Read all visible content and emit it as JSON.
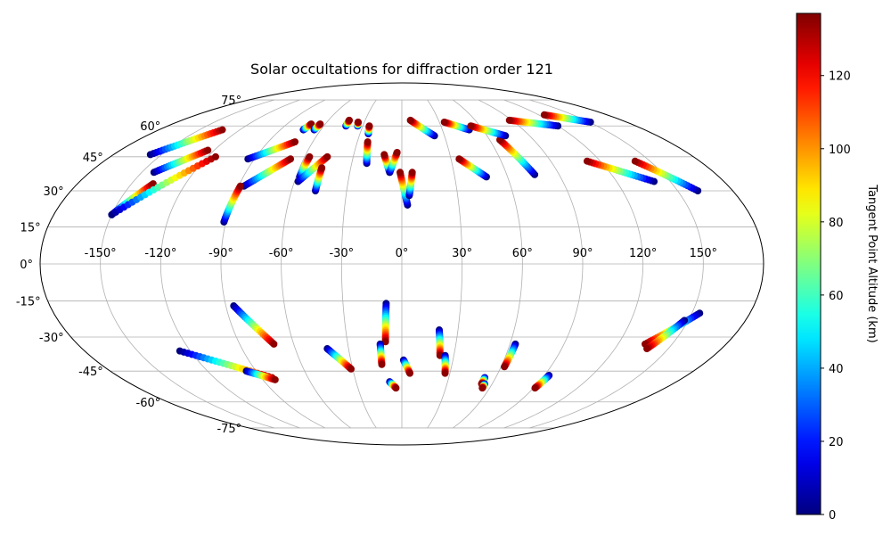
{
  "chart_data": {
    "type": "scatter",
    "projection": "mollweide",
    "title": "Solar occultations for diffraction order 121",
    "lon_ticks": [
      -150,
      -120,
      -90,
      -60,
      -30,
      0,
      30,
      60,
      90,
      120,
      150
    ],
    "lon_tick_labels": [
      "-150°",
      "-120°",
      "-90°",
      "-60°",
      "-30°",
      "0°",
      "30°",
      "60°",
      "90°",
      "120°",
      "150°"
    ],
    "lat_ticks": [
      75,
      60,
      45,
      30,
      15,
      0,
      -15,
      -30,
      -45,
      -60,
      -75
    ],
    "lat_tick_labels": [
      "75°",
      "60°",
      "45°",
      "30°",
      "15°",
      "0°",
      "-15°",
      "-30°",
      "-45°",
      "-60°",
      "-75°"
    ],
    "grid": true,
    "colorbar": {
      "label": "Tangent Point Altitude (km)",
      "range": [
        0,
        137
      ],
      "ticks": [
        0,
        20,
        40,
        60,
        80,
        100,
        120
      ],
      "tick_labels": [
        "0",
        "20",
        "40",
        "60",
        "80",
        "100",
        "120"
      ],
      "colormap": "jet"
    },
    "occultations": [
      {
        "start": [
          -157,
          46
        ],
        "end": [
          -133,
          58
        ],
        "alt_start": 0,
        "alt_end": 135
      },
      {
        "start": [
          -143,
          38
        ],
        "end": [
          -124,
          48
        ],
        "alt_start": 0,
        "alt_end": 135
      },
      {
        "start": [
          -150,
          20
        ],
        "end": [
          -138,
          33
        ],
        "alt_start": 0,
        "alt_end": 135
      },
      {
        "start": [
          -150,
          20
        ],
        "end": [
          -115,
          45
        ],
        "alt_start": 0,
        "alt_end": 135
      },
      {
        "start": [
          -94,
          44
        ],
        "end": [
          -72,
          52
        ],
        "alt_start": 0,
        "alt_end": 135
      },
      {
        "start": [
          -87,
          32
        ],
        "end": [
          -68,
          44
        ],
        "alt_start": 0,
        "alt_end": 135
      },
      {
        "start": [
          -91,
          17
        ],
        "end": [
          -89,
          32
        ],
        "alt_start": 0,
        "alt_end": 135
      },
      {
        "start": [
          -73,
          58
        ],
        "end": [
          -71,
          61
        ],
        "alt_start": 0,
        "alt_end": 135
      },
      {
        "start": [
          -65,
          58
        ],
        "end": [
          -64,
          61
        ],
        "alt_start": 0,
        "alt_end": 135
      },
      {
        "start": [
          -58,
          36
        ],
        "end": [
          -57,
          45
        ],
        "alt_start": 0,
        "alt_end": 135
      },
      {
        "start": [
          -58,
          34
        ],
        "end": [
          -46,
          45
        ],
        "alt_start": 0,
        "alt_end": 135
      },
      {
        "start": [
          -47,
          30
        ],
        "end": [
          -47,
          40
        ],
        "alt_start": 0,
        "alt_end": 135
      },
      {
        "start": [
          -43,
          60
        ],
        "end": [
          -43,
          63
        ],
        "alt_start": 0,
        "alt_end": 135
      },
      {
        "start": [
          -34,
          60
        ],
        "end": [
          -35,
          62
        ],
        "alt_start": 0,
        "alt_end": 135
      },
      {
        "start": [
          -24,
          56
        ],
        "end": [
          -25,
          60
        ],
        "alt_start": 0,
        "alt_end": 135
      },
      {
        "start": [
          -21,
          42
        ],
        "end": [
          -23,
          52
        ],
        "alt_start": 0,
        "alt_end": 135
      },
      {
        "start": [
          -7,
          38
        ],
        "end": [
          -11,
          46
        ],
        "alt_start": 0,
        "alt_end": 135
      },
      {
        "start": [
          -7,
          38
        ],
        "end": [
          -3,
          47
        ],
        "alt_start": 0,
        "alt_end": 135
      },
      {
        "start": [
          3,
          24
        ],
        "end": [
          -1,
          38
        ],
        "alt_start": 0,
        "alt_end": 135
      },
      {
        "start": [
          4,
          28
        ],
        "end": [
          6,
          38
        ],
        "alt_start": 0,
        "alt_end": 135
      },
      {
        "start": [
          23,
          55
        ],
        "end": [
          7,
          63
        ],
        "alt_start": 0,
        "alt_end": 135
      },
      {
        "start": [
          48,
          36
        ],
        "end": [
          35,
          44
        ],
        "alt_start": 0,
        "alt_end": 135
      },
      {
        "start": [
          50,
          58
        ],
        "end": [
          34,
          62
        ],
        "alt_start": 0,
        "alt_end": 135
      },
      {
        "start": [
          76,
          37
        ],
        "end": [
          67,
          53
        ],
        "alt_start": 0,
        "alt_end": 135
      },
      {
        "start": [
          73,
          55
        ],
        "end": [
          53,
          60
        ],
        "alt_start": 0,
        "alt_end": 135
      },
      {
        "start": [
          120,
          60
        ],
        "end": [
          88,
          63
        ],
        "alt_start": 0,
        "alt_end": 135
      },
      {
        "start": [
          151,
          62
        ],
        "end": [
          125,
          66
        ],
        "alt_start": 0,
        "alt_end": 135
      },
      {
        "start": [
          141,
          34
        ],
        "end": [
          112,
          43
        ],
        "alt_start": 0,
        "alt_end": 135
      },
      {
        "start": [
          161,
          30
        ],
        "end": [
          141,
          43
        ],
        "alt_start": 0,
        "alt_end": 135
      },
      {
        "start": [
          -86,
          -17
        ],
        "end": [
          -71,
          -33
        ],
        "alt_start": 0,
        "alt_end": 135
      },
      {
        "start": [
          -126,
          -36
        ],
        "end": [
          -83,
          -48
        ],
        "alt_start": 0,
        "alt_end": 135
      },
      {
        "start": [
          -96,
          -45
        ],
        "end": [
          -82,
          -49
        ],
        "alt_start": 0,
        "alt_end": 135
      },
      {
        "start": [
          -42,
          -35
        ],
        "end": [
          -31,
          -44
        ],
        "alt_start": 0,
        "alt_end": 135
      },
      {
        "start": [
          -8,
          -16
        ],
        "end": [
          -9,
          -32
        ],
        "alt_start": 0,
        "alt_end": 135
      },
      {
        "start": [
          -12,
          -33
        ],
        "end": [
          -12,
          -42
        ],
        "alt_start": 0,
        "alt_end": 135
      },
      {
        "start": [
          1,
          -40
        ],
        "end": [
          5,
          -46
        ],
        "alt_start": 0,
        "alt_end": 135
      },
      {
        "start": [
          -8,
          -50
        ],
        "end": [
          -4,
          -53
        ],
        "alt_start": 0,
        "alt_end": 135
      },
      {
        "start": [
          20,
          -27
        ],
        "end": [
          22,
          -38
        ],
        "alt_start": 0,
        "alt_end": 135
      },
      {
        "start": [
          25,
          -38
        ],
        "end": [
          27,
          -46
        ],
        "alt_start": 0,
        "alt_end": 135
      },
      {
        "start": [
          63,
          -33
        ],
        "end": [
          62,
          -43
        ],
        "alt_start": 0,
        "alt_end": 135
      },
      {
        "start": [
          53,
          -48
        ],
        "end": [
          53,
          -51
        ],
        "alt_start": 0,
        "alt_end": 135
      },
      {
        "start": [
          55,
          -51
        ],
        "end": [
          55,
          -53
        ],
        "alt_start": 0,
        "alt_end": 135
      },
      {
        "start": [
          93,
          -47
        ],
        "end": [
          91,
          -53
        ],
        "alt_start": 0,
        "alt_end": 135
      },
      {
        "start": [
          154,
          -20
        ],
        "end": [
          135,
          -33
        ],
        "alt_start": 0,
        "alt_end": 135
      },
      {
        "start": [
          148,
          -23
        ],
        "end": [
          138,
          -35
        ],
        "alt_start": 0,
        "alt_end": 135
      }
    ]
  }
}
